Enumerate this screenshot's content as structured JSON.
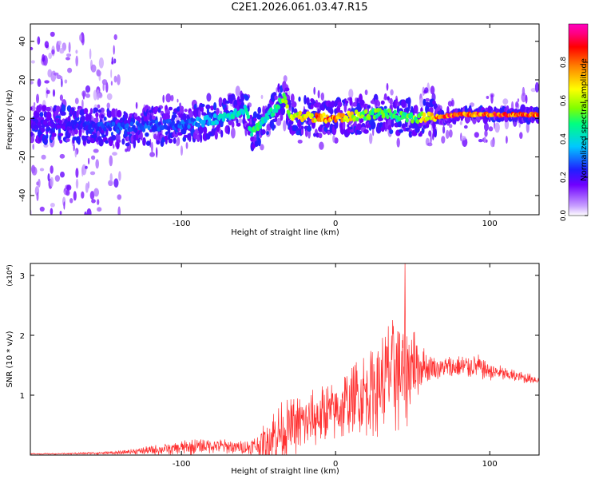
{
  "title": "C2E1.2026.061.03.47.R15",
  "chart_data": [
    {
      "type": "heatmap",
      "title": "C2E1.2026.061.03.47.R15",
      "xlabel": "Height of straight line (km)",
      "ylabel": "Frequency (Hz)",
      "xlim": [
        -198,
        132
      ],
      "ylim": [
        -50,
        49
      ],
      "xticks": [
        -100,
        0,
        100
      ],
      "xtick_labels": [
        "-100",
        "0",
        "100"
      ],
      "yticks": [
        -40,
        -20,
        0,
        20,
        40
      ],
      "ytick_labels": [
        "-40",
        "-20",
        "0",
        "20",
        "40"
      ],
      "colorbar": {
        "label": "Normalized spectral amplitude",
        "range": [
          0,
          1
        ],
        "ticks": [
          0,
          0.2,
          0.4,
          0.6,
          0.8
        ],
        "tick_labels": [
          "0.0",
          "0.2",
          "0.4",
          "0.6",
          "0.8"
        ],
        "colors": [
          "#ffffff",
          "#c8a0ff",
          "#7000ff",
          "#2020ff",
          "#00c8ff",
          "#00ff80",
          "#80ff00",
          "#ffff00",
          "#ff8000",
          "#ff0000",
          "#ff0080",
          "#ff00c0"
        ]
      },
      "ridge": {
        "x": [
          -198,
          -180,
          -160,
          -140,
          -120,
          -100,
          -80,
          -65,
          -58,
          -55,
          -50,
          -45,
          -38,
          -33,
          -30,
          -20,
          -10,
          0,
          10,
          20,
          30,
          40,
          50,
          60,
          70,
          80,
          90,
          100,
          110,
          120,
          132
        ],
        "freq": [
          -3,
          -3,
          -4,
          -5,
          -4,
          -3,
          -1,
          3,
          5,
          -7,
          -4,
          0,
          6,
          11,
          2,
          1,
          0,
          0,
          1,
          2,
          3,
          1,
          0,
          1,
          1,
          2,
          2,
          2,
          2,
          2,
          2
        ],
        "amplitude": [
          0.2,
          0.2,
          0.25,
          0.3,
          0.3,
          0.3,
          0.4,
          0.45,
          0.45,
          0.5,
          0.5,
          0.45,
          0.5,
          0.6,
          0.6,
          0.75,
          0.85,
          0.85,
          0.7,
          0.6,
          0.55,
          0.5,
          0.6,
          0.75,
          0.9,
          0.9,
          0.9,
          0.9,
          0.9,
          0.9,
          0.9
        ]
      }
    },
    {
      "type": "line",
      "xlabel": "Height of straight line (km)",
      "ylabel": "SNR (10 * v/v)",
      "y_scale_label": "(x10⁴)",
      "color": "#ff3030",
      "xlim": [
        -198,
        132
      ],
      "ylim": [
        0,
        3.2
      ],
      "xticks": [
        -100,
        0,
        100
      ],
      "xtick_labels": [
        "-100",
        "0",
        "100"
      ],
      "yticks": [
        1,
        2,
        3
      ],
      "ytick_labels": [
        "1",
        "2",
        "3"
      ],
      "x": [
        -198,
        -180,
        -160,
        -140,
        -130,
        -120,
        -110,
        -100,
        -90,
        -80,
        -70,
        -60,
        -50,
        -45,
        -40,
        -35,
        -30,
        -20,
        -10,
        0,
        10,
        20,
        30,
        35,
        40,
        45,
        50,
        55,
        60,
        70,
        80,
        90,
        100,
        110,
        120,
        132
      ],
      "baseline": [
        0.02,
        0.02,
        0.03,
        0.04,
        0.06,
        0.08,
        0.1,
        0.12,
        0.14,
        0.16,
        0.14,
        0.12,
        0.15,
        0.22,
        0.32,
        0.4,
        0.45,
        0.55,
        0.65,
        0.75,
        0.9,
        1.05,
        1.2,
        1.35,
        1.45,
        1.45,
        1.5,
        1.5,
        1.45,
        1.45,
        1.45,
        1.5,
        1.4,
        1.35,
        1.3,
        1.25
      ],
      "spread": [
        0.01,
        0.01,
        0.02,
        0.03,
        0.05,
        0.08,
        0.1,
        0.12,
        0.14,
        0.14,
        0.12,
        0.12,
        0.2,
        0.4,
        0.5,
        0.5,
        0.5,
        0.5,
        0.5,
        0.55,
        0.65,
        0.75,
        0.9,
        1.05,
        1.15,
        1.1,
        0.8,
        0.4,
        0.25,
        0.22,
        0.22,
        0.22,
        0.18,
        0.12,
        0.1,
        0.08
      ],
      "peak": {
        "x": 45,
        "y": 3.2
      }
    }
  ]
}
